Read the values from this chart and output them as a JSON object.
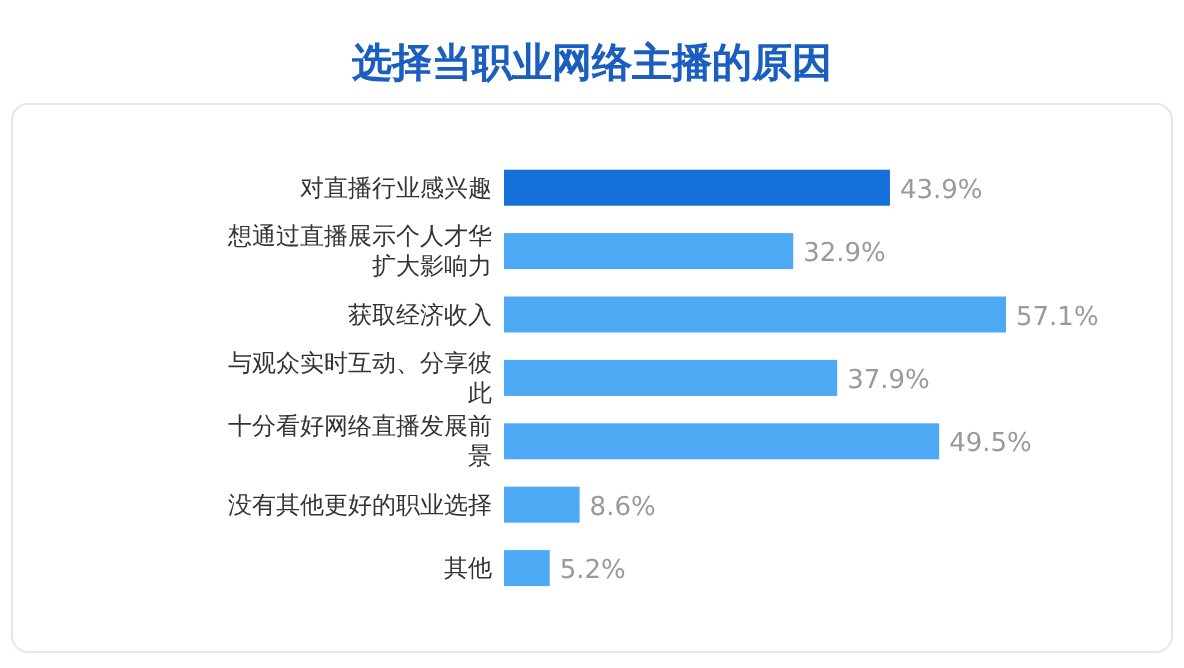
{
  "chart_data": {
    "type": "bar",
    "orientation": "horizontal",
    "title": "选择当职业网络主播的原因",
    "categories": [
      "对直播行业感兴趣",
      "想通过直播展示个人才华扩大影响力",
      "获取经济收入",
      "与观众实时互动、分享彼此",
      "十分看好网络直播发展前景",
      "没有其他更好的职业选择",
      "其他"
    ],
    "values": [
      43.9,
      32.9,
      57.1,
      37.9,
      49.5,
      8.6,
      5.2
    ],
    "value_labels": [
      "43.9%",
      "32.9%",
      "57.1%",
      "37.9%",
      "49.5%",
      "8.6%",
      "5.2%"
    ],
    "colors": [
      "#1470d8",
      "#4ea9f4",
      "#4ea9f4",
      "#4ea9f4",
      "#4ea9f4",
      "#4ea9f4",
      "#4ea9f4"
    ]
  }
}
